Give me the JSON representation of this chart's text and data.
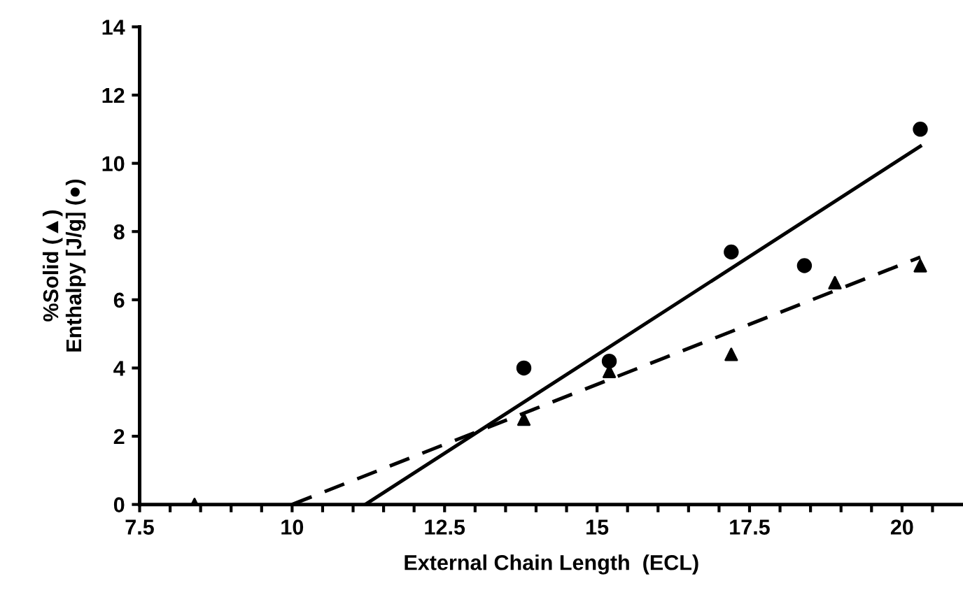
{
  "chart_data": {
    "type": "scatter",
    "xlabel": "External Chain Length  (ECL)",
    "ylabel": "%Solid (▲)\nEnthalpy [J/g] (●)",
    "xlim": [
      7.5,
      21
    ],
    "ylim": [
      0,
      14
    ],
    "xticks": [
      7.5,
      {
        "value": 8,
        "label": null
      },
      {
        "value": 8.5,
        "label": null
      },
      {
        "value": 9,
        "label": null
      },
      {
        "value": 9.5,
        "label": null
      },
      10,
      {
        "value": 10.5,
        "label": null
      },
      {
        "value": 11,
        "label": null
      },
      {
        "value": 11.5,
        "label": null
      },
      {
        "value": 12,
        "label": null
      },
      12.5,
      {
        "value": 13,
        "label": null
      },
      {
        "value": 13.5,
        "label": null
      },
      {
        "value": 14,
        "label": null
      },
      {
        "value": 14.5,
        "label": null
      },
      15,
      {
        "value": 15.5,
        "label": null
      },
      {
        "value": 16,
        "label": null
      },
      {
        "value": 16.5,
        "label": null
      },
      {
        "value": 17,
        "label": null
      },
      17.5,
      {
        "value": 18,
        "label": null
      },
      {
        "value": 18.5,
        "label": null
      },
      {
        "value": 19,
        "label": null
      },
      {
        "value": 19.5,
        "label": null
      },
      20,
      {
        "value": 20.5,
        "label": null
      }
    ],
    "yticks": [
      0,
      2,
      4,
      6,
      8,
      10,
      12,
      14
    ],
    "grid": false,
    "series": [
      {
        "marker": "circle",
        "color": "#000000",
        "x": [
          13.8,
          15.2,
          17.2,
          18.4,
          20.3
        ],
        "values": [
          4.0,
          4.2,
          7.4,
          7.0,
          11.0
        ]
      },
      {
        "marker": "triangle",
        "color": "#000000",
        "x": [
          8.4,
          13.8,
          15.2,
          17.2,
          18.9,
          20.3
        ],
        "values": [
          0,
          2.5,
          3.9,
          4.4,
          6.5,
          7.0
        ]
      },
      {
        "type": "line",
        "line_style": "solid",
        "color": "#000000",
        "x": [
          11.2,
          20.3
        ],
        "values": [
          0,
          10.5
        ]
      },
      {
        "type": "line",
        "line_style": "dashed",
        "color": "#000000",
        "x": [
          10.0,
          20.3
        ],
        "values": [
          0,
          7.25
        ]
      }
    ]
  }
}
